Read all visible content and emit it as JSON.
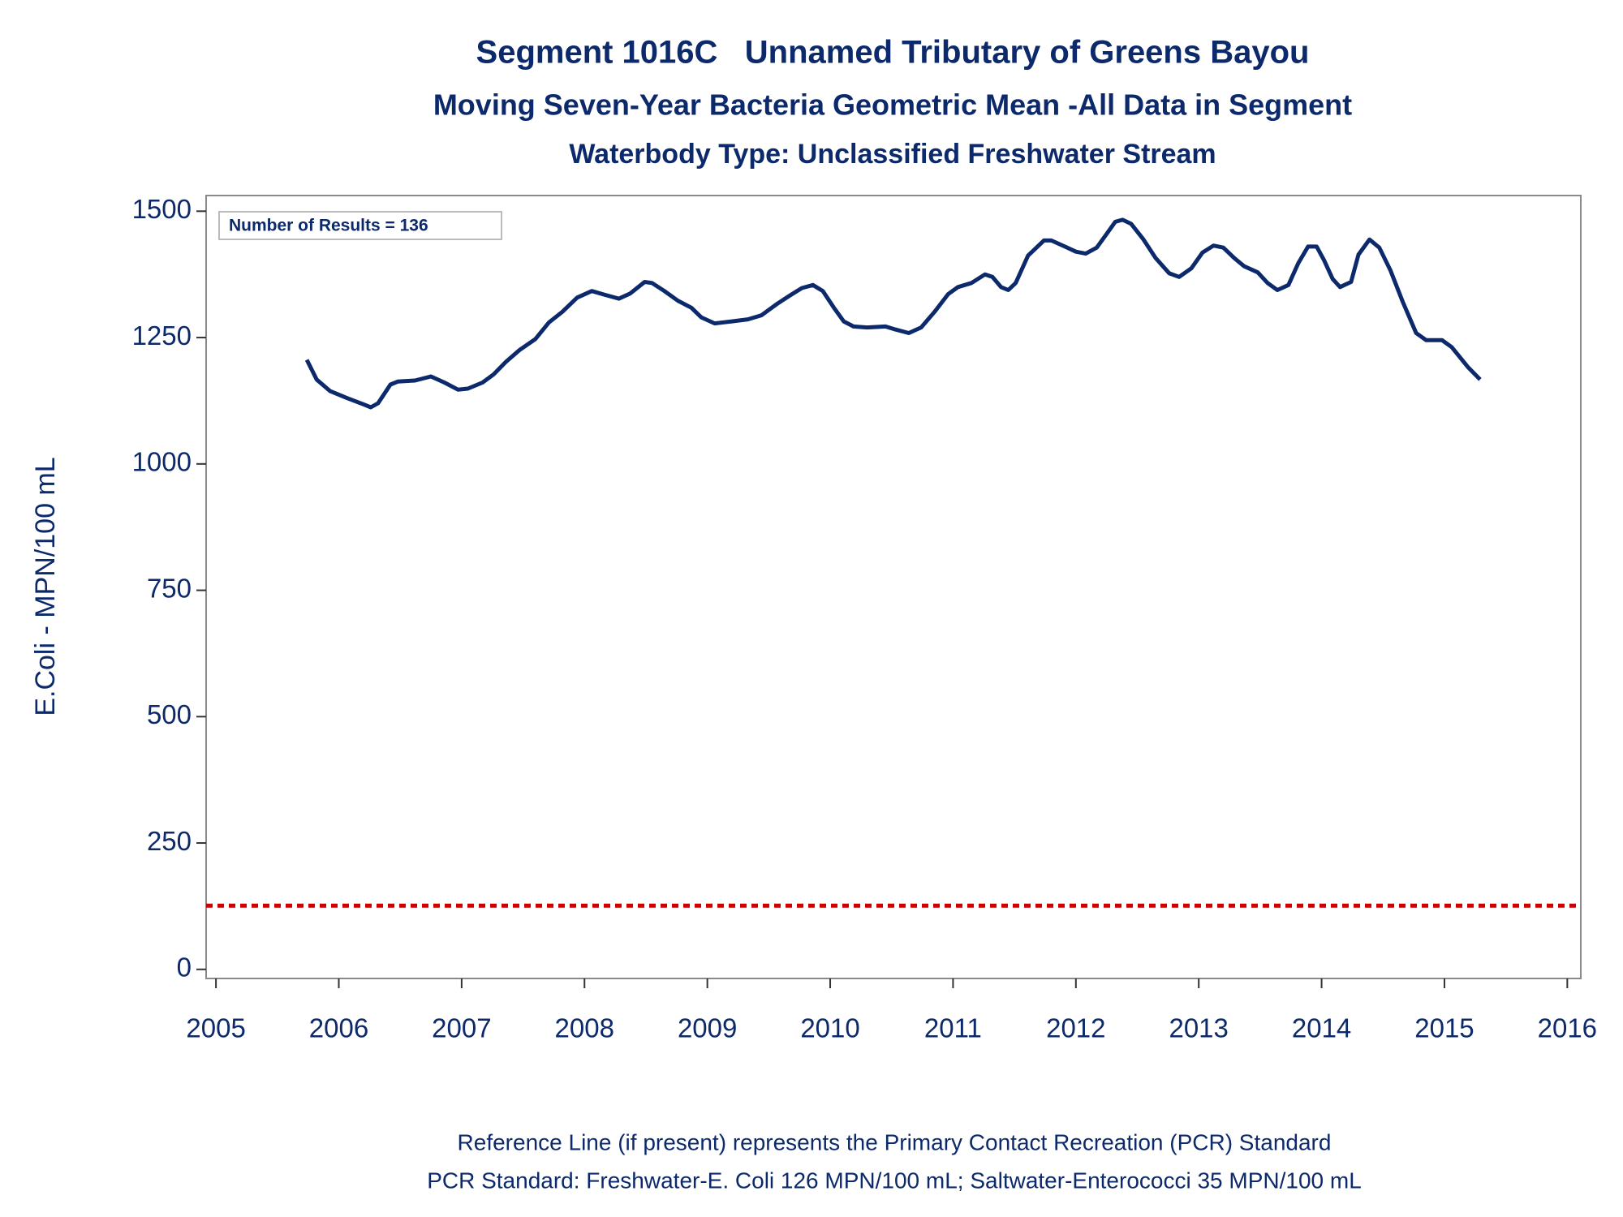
{
  "chart_data": {
    "type": "line",
    "title": "Segment 1016C   Unnamed Tributary of Greens Bayou",
    "subtitle": "Moving Seven-Year Bacteria Geometric Mean -All Data in Segment",
    "subtitle2": "Waterbody Type: Unclassified Freshwater Stream",
    "y_label": "E.Coli - MPN/100 mL",
    "annotation": "Number of Results = 136",
    "footnotes": [
      "Reference Line (if present) represents the Primary Contact Recreation (PCR) Standard",
      "PCR Standard: Freshwater-E. Coli 126 MPN/100 mL; Saltwater-Enterococci 35 MPN/100 mL"
    ],
    "xlim": [
      2004.92,
      2016.11
    ],
    "xticks": [
      2005,
      2006,
      2007,
      2008,
      2009,
      2010,
      2011,
      2012,
      2013,
      2014,
      2015,
      2016
    ],
    "ylim": [
      -18,
      1531
    ],
    "yticks": [
      0,
      250,
      500,
      750,
      1000,
      1250,
      1500
    ],
    "reference_line": {
      "value": 126,
      "color": "#cc0000"
    },
    "series": [
      {
        "color": "#0c2a6b",
        "x": [
          2005.74,
          2005.82,
          2005.93,
          2006.07,
          2006.2,
          2006.26,
          2006.32,
          2006.42,
          2006.48,
          2006.62,
          2006.75,
          2006.86,
          2006.97,
          2007.05,
          2007.17,
          2007.26,
          2007.36,
          2007.47,
          2007.6,
          2007.71,
          2007.82,
          2007.94,
          2008.06,
          2008.16,
          2008.28,
          2008.37,
          2008.49,
          2008.55,
          2008.65,
          2008.76,
          2008.87,
          2008.95,
          2009.06,
          2009.2,
          2009.33,
          2009.44,
          2009.57,
          2009.67,
          2009.77,
          2009.86,
          2009.94,
          2010.03,
          2010.11,
          2010.19,
          2010.3,
          2010.45,
          2010.53,
          2010.64,
          2010.74,
          2010.85,
          2010.96,
          2011.04,
          2011.15,
          2011.26,
          2011.32,
          2011.39,
          2011.45,
          2011.51,
          2011.61,
          2011.74,
          2011.8,
          2011.91,
          2012.0,
          2012.08,
          2012.17,
          2012.25,
          2012.32,
          2012.38,
          2012.45,
          2012.55,
          2012.65,
          2012.76,
          2012.84,
          2012.94,
          2013.03,
          2013.12,
          2013.2,
          2013.29,
          2013.37,
          2013.48,
          2013.56,
          2013.64,
          2013.73,
          2013.81,
          2013.89,
          2013.96,
          2014.02,
          2014.09,
          2014.15,
          2014.24,
          2014.3,
          2014.39,
          2014.47,
          2014.56,
          2014.66,
          2014.77,
          2014.85,
          2014.98,
          2015.06,
          2015.19,
          2015.29
        ],
        "values": [
          1206,
          1167,
          1144,
          1130,
          1118,
          1112,
          1120,
          1157,
          1163,
          1165,
          1173,
          1161,
          1147,
          1149,
          1161,
          1177,
          1202,
          1225,
          1247,
          1280,
          1301,
          1329,
          1342,
          1335,
          1327,
          1337,
          1360,
          1358,
          1342,
          1323,
          1309,
          1290,
          1278,
          1282,
          1286,
          1294,
          1317,
          1333,
          1348,
          1354,
          1342,
          1309,
          1282,
          1272,
          1270,
          1272,
          1266,
          1259,
          1270,
          1301,
          1336,
          1350,
          1358,
          1375,
          1370,
          1350,
          1344,
          1358,
          1412,
          1442,
          1442,
          1430,
          1420,
          1416,
          1428,
          1455,
          1479,
          1483,
          1475,
          1444,
          1407,
          1377,
          1370,
          1387,
          1418,
          1432,
          1428,
          1407,
          1391,
          1379,
          1358,
          1344,
          1354,
          1397,
          1430,
          1430,
          1403,
          1366,
          1350,
          1360,
          1414,
          1444,
          1428,
          1383,
          1321,
          1259,
          1245,
          1245,
          1231,
          1192,
          1167
        ]
      }
    ]
  }
}
